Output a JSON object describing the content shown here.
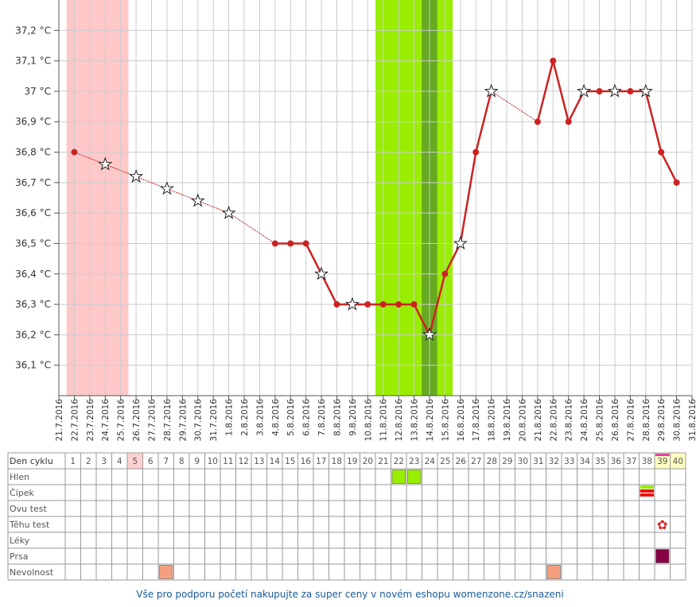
{
  "chart_data": {
    "type": "line",
    "x": [
      "21.7.2016",
      "22.7.2016",
      "23.7.2016",
      "24.7.2016",
      "25.7.2016",
      "26.7.2016",
      "27.7.2016",
      "28.7.2016",
      "29.7.2016",
      "30.7.2016",
      "31.7.2016",
      "1.8.2016",
      "2.8.2016",
      "3.8.2016",
      "4.8.2016",
      "5.8.2016",
      "6.8.2016",
      "7.8.2016",
      "8.8.2016",
      "9.8.2016",
      "10.8.2016",
      "11.8.2016",
      "12.8.2016",
      "13.8.2016",
      "14.8.2016",
      "15.8.2016",
      "16.8.2016",
      "17.8.2016",
      "18.8.2016",
      "19.8.2016",
      "20.8.2016",
      "21.8.2016",
      "22.8.2016",
      "23.8.2016",
      "24.8.2016",
      "25.8.2016",
      "26.8.2016",
      "27.8.2016",
      "28.8.2016",
      "29.8.2016",
      "30.8.2016",
      "31.8.2016"
    ],
    "values": [
      null,
      36.8,
      null,
      36.76,
      null,
      36.72,
      null,
      36.68,
      null,
      36.64,
      null,
      36.6,
      null,
      null,
      36.5,
      36.5,
      36.5,
      36.4,
      36.3,
      36.3,
      36.3,
      36.3,
      36.3,
      36.3,
      36.2,
      36.4,
      36.5,
      36.8,
      37.0,
      null,
      null,
      36.9,
      37.1,
      36.9,
      37.0,
      37.0,
      37.0,
      37.0,
      37.0,
      36.8,
      36.7,
      null
    ],
    "point_styles": [
      null,
      "dot",
      null,
      "star",
      null,
      "star",
      null,
      "star",
      null,
      "star",
      null,
      "star",
      null,
      null,
      "dot",
      "dot",
      "dot",
      "star",
      "dot",
      "star",
      "dot",
      "dot",
      "dot",
      "dot",
      "star",
      "dot",
      "star",
      "dot",
      "star",
      null,
      null,
      "dot",
      "dot",
      "dot",
      "star",
      "dot",
      "star",
      "dot",
      "star",
      "dot",
      "dot",
      null
    ],
    "color": "#cc2222",
    "ylim": [
      36.0,
      37.3
    ],
    "yticks": [
      {
        "value": 36.1,
        "label": "36,1 °C"
      },
      {
        "value": 36.2,
        "label": "36,2 °C"
      },
      {
        "value": 36.3,
        "label": "36,3 °C"
      },
      {
        "value": 36.4,
        "label": "36,4 °C"
      },
      {
        "value": 36.5,
        "label": "36,5 °C"
      },
      {
        "value": 36.6,
        "label": "36,6 °C"
      },
      {
        "value": 36.7,
        "label": "36,7 °C"
      },
      {
        "value": 36.8,
        "label": "36,8 °C"
      },
      {
        "value": 36.9,
        "label": "36,9 °C"
      },
      {
        "value": 37,
        "label": "37 °C"
      },
      {
        "value": 37.1,
        "label": "37,1 °C"
      },
      {
        "value": 37.2,
        "label": "37,2 °C"
      }
    ],
    "grid": true,
    "bands": [
      {
        "from": "22.7.2016",
        "to": "25.7.2016",
        "color": "#ffc8c8"
      },
      {
        "from": "11.8.2016",
        "to": "15.8.2016",
        "color": "#99ee00"
      },
      {
        "from": "14.8.2016",
        "to": "14.8.2016",
        "color": "#66aa22"
      }
    ]
  },
  "table": {
    "header_label": "Den cyklu",
    "days": [
      1,
      2,
      3,
      4,
      5,
      6,
      7,
      8,
      9,
      10,
      11,
      12,
      13,
      14,
      15,
      16,
      17,
      18,
      19,
      20,
      21,
      22,
      23,
      24,
      25,
      26,
      27,
      28,
      29,
      30,
      31,
      32,
      33,
      34,
      35,
      36,
      37,
      38,
      39,
      40
    ],
    "highlights": [
      {
        "day": 5,
        "color": "#ffd0d0"
      },
      {
        "day": 39,
        "color": "#ffffc0",
        "top": "#e040a0"
      },
      {
        "day": 40,
        "color": "#ffffc0"
      }
    ],
    "rows": [
      {
        "label": "Hlen",
        "entries": [
          {
            "day": 22,
            "colors": [
              "#99ee00"
            ]
          },
          {
            "day": 23,
            "colors": [
              "#99ee00"
            ]
          }
        ]
      },
      {
        "label": "Čípek",
        "entries": [
          {
            "day": 38,
            "colors": [
              "#99ee00",
              "#ee1111",
              "#ee1111"
            ]
          }
        ]
      },
      {
        "label": "Ovu test",
        "entries": []
      },
      {
        "label": "Těhu test",
        "entries": [
          {
            "day": 39,
            "symbol": "✿",
            "color": "#dd2222"
          }
        ]
      },
      {
        "label": "Léky",
        "entries": []
      },
      {
        "label": "Prsa",
        "entries": [
          {
            "day": 39,
            "colors": [
              "#880044"
            ]
          }
        ]
      },
      {
        "label": "Nevolnost",
        "entries": [
          {
            "day": 7,
            "colors": [
              "#f4a080"
            ]
          },
          {
            "day": 32,
            "colors": [
              "#f4a080"
            ]
          }
        ]
      }
    ]
  },
  "footer": "Vše pro podporu početí nakupujte za super ceny v novém eshopu womenzone.cz/snazeni"
}
